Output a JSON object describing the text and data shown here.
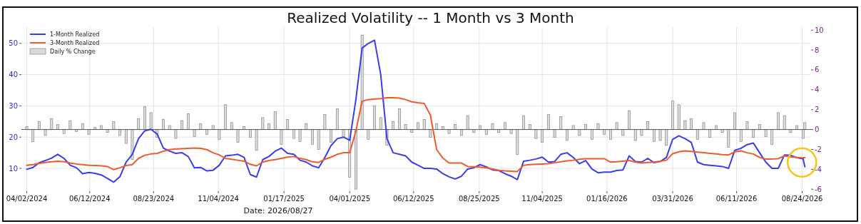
{
  "chart_data": {
    "type": "line",
    "title": "Realized Volatility -- 1 Month vs 3 Month",
    "x": [
      "2024-04-02",
      "2024-04-09",
      "2024-04-16",
      "2024-04-23",
      "2024-04-30",
      "2024-05-07",
      "2024-05-14",
      "2024-05-21",
      "2024-05-28",
      "2024-06-04",
      "2024-06-11",
      "2024-06-18",
      "2024-06-25",
      "2024-07-02",
      "2024-07-09",
      "2024-07-16",
      "2024-07-23",
      "2024-07-30",
      "2024-08-06",
      "2024-08-13",
      "2024-08-20",
      "2024-08-27",
      "2024-09-03",
      "2024-09-10",
      "2024-09-17",
      "2024-09-24",
      "2024-10-01",
      "2024-10-08",
      "2024-10-15",
      "2024-10-22",
      "2024-10-29",
      "2024-11-05",
      "2024-11-12",
      "2024-11-19",
      "2024-11-26",
      "2024-12-03",
      "2024-12-10",
      "2024-12-17",
      "2024-12-24",
      "2024-12-31",
      "2025-01-07",
      "2025-01-14",
      "2025-01-21",
      "2025-01-28",
      "2025-02-04",
      "2025-02-11",
      "2025-02-18",
      "2025-02-25",
      "2025-03-04",
      "2025-03-11",
      "2025-03-18",
      "2025-03-25",
      "2025-04-01",
      "2025-04-08",
      "2025-04-15",
      "2025-04-22",
      "2025-04-29",
      "2025-05-06",
      "2025-05-13",
      "2025-05-20",
      "2025-05-27",
      "2025-06-03",
      "2025-06-10",
      "2025-06-17",
      "2025-06-24",
      "2025-07-01",
      "2025-07-08",
      "2025-07-15",
      "2025-07-22",
      "2025-07-29",
      "2025-08-05",
      "2025-08-12",
      "2025-08-19",
      "2025-08-26",
      "2025-09-02",
      "2025-09-09",
      "2025-09-16",
      "2025-09-23",
      "2025-09-30",
      "2025-10-07",
      "2025-10-14",
      "2025-10-21",
      "2025-10-28",
      "2025-11-04",
      "2025-11-11",
      "2025-11-18",
      "2025-11-25",
      "2025-12-02",
      "2025-12-09",
      "2025-12-16",
      "2025-12-23",
      "2025-12-30",
      "2026-01-06",
      "2026-01-13",
      "2026-01-20",
      "2026-01-27",
      "2026-02-03",
      "2026-02-10",
      "2026-02-17",
      "2026-02-24",
      "2026-03-03",
      "2026-03-10",
      "2026-03-17",
      "2026-03-24",
      "2026-03-31",
      "2026-04-07",
      "2026-04-14",
      "2026-04-21",
      "2026-04-28",
      "2026-05-05",
      "2026-05-12",
      "2026-05-19",
      "2026-05-26",
      "2026-06-02",
      "2026-06-09",
      "2026-06-16",
      "2026-06-23",
      "2026-06-30",
      "2026-07-07",
      "2026-07-14",
      "2026-07-21",
      "2026-07-28",
      "2026-08-04",
      "2026-08-11",
      "2026-08-18",
      "2026-08-25",
      "2026-08-27"
    ],
    "xlim": [
      "2024-03-27",
      "2026-09-03"
    ],
    "xticks": [
      {
        "value": "2024-04-02",
        "label": "04/02/2024"
      },
      {
        "value": "2024-06-12",
        "label": "06/12/2024"
      },
      {
        "value": "2024-08-23",
        "label": "08/23/2024"
      },
      {
        "value": "2024-11-04",
        "label": "11/04/2024"
      },
      {
        "value": "2025-01-17",
        "label": "01/17/2025"
      },
      {
        "value": "2025-04-01",
        "label": "04/01/2025"
      },
      {
        "value": "2025-06-12",
        "label": "06/12/2025"
      },
      {
        "value": "2025-08-25",
        "label": "08/25/2025"
      },
      {
        "value": "2025-11-04",
        "label": "11/04/2025"
      },
      {
        "value": "2026-01-16",
        "label": "01/16/2026"
      },
      {
        "value": "2026-03-31",
        "label": "03/31/2026"
      },
      {
        "value": "2026-06-11",
        "label": "06/11/2026"
      },
      {
        "value": "2026-08-24",
        "label": "08/24/2026"
      }
    ],
    "ylim": [
      2.7,
      55.2
    ],
    "yticks": [
      10,
      20,
      30,
      40,
      50
    ],
    "y2lim": [
      -6.2,
      10.3
    ],
    "y2ticks": [
      -6,
      -4,
      -2,
      0,
      2,
      4,
      6,
      8,
      10
    ],
    "grid": true,
    "legend": "top left",
    "ref_lines": [
      {
        "axis": "y2",
        "value": 0,
        "color": "#555555"
      }
    ],
    "series": [
      {
        "name": "1-Month Realized",
        "color": "#3b3bf0",
        "values": [
          9.7,
          10.3,
          11.8,
          12.5,
          13.3,
          14.5,
          13.2,
          11.0,
          10.2,
          8.3,
          8.7,
          8.4,
          7.9,
          6.8,
          5.6,
          7.3,
          12.0,
          14.5,
          19.5,
          22.0,
          22.5,
          21.0,
          16.5,
          15.5,
          14.8,
          15.0,
          13.8,
          10.2,
          10.3,
          9.2,
          9.4,
          11.0,
          14.0,
          14.2,
          14.5,
          13.5,
          8.0,
          7.2,
          12.8,
          13.8,
          15.5,
          16.5,
          14.8,
          14.5,
          12.6,
          12.0,
          10.8,
          10.2,
          13.5,
          17.3,
          19.5,
          20.0,
          19.0,
          32.0,
          48.5,
          50.0,
          51.0,
          40.0,
          19.5,
          15.0,
          14.5,
          14.0,
          12.0,
          11.0,
          10.0,
          10.0,
          9.8,
          8.3,
          7.3,
          6.6,
          7.5,
          9.8,
          10.2,
          11.2,
          10.5,
          9.5,
          9.3,
          8.3,
          7.5,
          6.4,
          12.3,
          12.6,
          13.0,
          13.6,
          12.0,
          12.2,
          14.5,
          15.0,
          13.5,
          11.5,
          12.5,
          9.8,
          8.6,
          8.8,
          8.8,
          9.3,
          9.5,
          14.0,
          12.2,
          12.0,
          13.2,
          11.8,
          12.2,
          13.5,
          19.3,
          20.4,
          19.5,
          18.3,
          12.0,
          11.2,
          11.0,
          10.8,
          10.6,
          10.0,
          15.8,
          16.4,
          17.6,
          18.1,
          15.0,
          12.0,
          10.0,
          10.0,
          14.3,
          14.2,
          13.4,
          13.1,
          10.5
        ]
      },
      {
        "name": "3-Month Realized",
        "color": "#f05a28",
        "values": [
          11.0,
          11.2,
          11.6,
          11.9,
          12.1,
          12.3,
          12.1,
          11.7,
          11.4,
          11.2,
          11.0,
          10.9,
          10.8,
          10.6,
          9.6,
          10.2,
          10.9,
          11.2,
          13.2,
          14.2,
          14.6,
          14.8,
          15.5,
          16.0,
          16.2,
          16.3,
          16.4,
          16.5,
          16.4,
          16.0,
          15.0,
          14.3,
          13.2,
          12.9,
          12.6,
          12.3,
          11.3,
          10.8,
          12.0,
          12.5,
          12.8,
          13.2,
          13.6,
          13.8,
          13.2,
          12.8,
          12.1,
          11.9,
          12.9,
          13.6,
          14.5,
          15.0,
          15.0,
          22.0,
          31.5,
          32.0,
          32.2,
          32.3,
          32.6,
          32.6,
          32.5,
          32.0,
          31.3,
          31.0,
          30.8,
          27.0,
          16.0,
          13.3,
          11.7,
          11.7,
          11.7,
          10.6,
          10.5,
          10.4,
          10.2,
          9.8,
          9.4,
          9.2,
          9.1,
          9.0,
          11.0,
          11.2,
          11.3,
          11.4,
          11.5,
          11.8,
          12.1,
          12.4,
          12.6,
          12.9,
          13.1,
          13.1,
          13.1,
          13.1,
          12.0,
          12.1,
          12.3,
          12.5,
          12.0,
          11.7,
          11.9,
          12.0,
          12.3,
          12.6,
          14.7,
          15.3,
          15.6,
          15.4,
          15.2,
          15.0,
          14.8,
          14.6,
          14.4,
          14.3,
          15.3,
          15.6,
          15.0,
          14.6,
          13.5,
          13.0,
          13.0,
          13.1,
          14.0,
          13.7,
          13.5,
          13.4,
          13.4
        ]
      },
      {
        "name": "Daily % Change",
        "type": "bar",
        "axis": "y2",
        "color": "#dcdcdc",
        "values": [
          0.3,
          -1.2,
          0.8,
          -0.6,
          1.1,
          0.5,
          -0.4,
          0.9,
          -0.2,
          0.6,
          -0.5,
          0.2,
          0.4,
          -0.3,
          0.8,
          -0.6,
          -1.4,
          -3.0,
          1.1,
          2.3,
          1.7,
          -0.8,
          1.0,
          0.4,
          -0.9,
          0.9,
          1.6,
          -0.7,
          0.6,
          -0.5,
          0.4,
          -1.0,
          2.5,
          0.7,
          -1.3,
          0.3,
          -0.8,
          -2.1,
          1.2,
          0.6,
          1.8,
          -1.5,
          1.0,
          -0.9,
          -1.2,
          0.6,
          -1.5,
          -2.0,
          1.5,
          -1.3,
          2.1,
          -0.8,
          -4.8,
          -6.0,
          9.5,
          -1.0,
          2.4,
          1.2,
          -1.6,
          0.8,
          2.1,
          0.5,
          -0.3,
          0.7,
          1.0,
          -0.8,
          0.6,
          0.3,
          -0.4,
          0.5,
          -0.6,
          1.4,
          -0.3,
          0.4,
          -0.5,
          0.6,
          -0.3,
          0.7,
          -0.4,
          -2.5,
          1.4,
          0.5,
          -0.9,
          -1.3,
          1.5,
          -0.8,
          1.3,
          -1.1,
          0.4,
          -0.6,
          0.5,
          -1.0,
          0.6,
          -0.5,
          -1.0,
          0.7,
          -0.6,
          1.9,
          -1.1,
          -0.6,
          0.8,
          -1.2,
          -1.1,
          -1.6,
          2.9,
          2.5,
          0.9,
          1.1,
          -1.0,
          0.7,
          -0.8,
          0.4,
          -0.3,
          -1.8,
          1.7,
          -1.2,
          0.8,
          -0.8,
          0.5,
          -0.7,
          -1.5,
          1.7,
          1.4,
          -0.3,
          0.4,
          -0.9,
          0.7
        ]
      }
    ],
    "annotations": [
      "Date: 2026/08/27"
    ]
  }
}
